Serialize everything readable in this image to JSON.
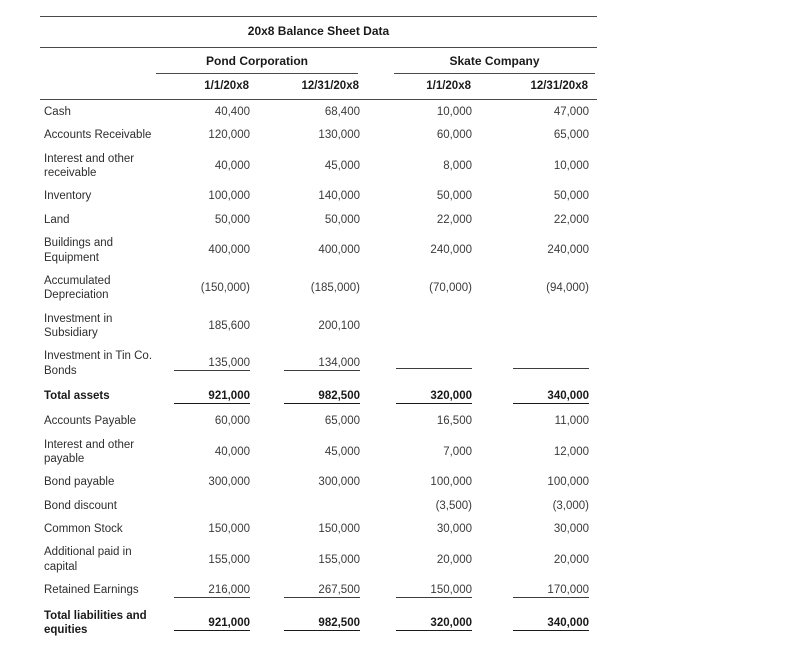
{
  "title": "20x8 Balance Sheet Data",
  "column_groups": [
    {
      "label": "Pond Corporation",
      "columns": [
        "1/1/20x8",
        "12/31/20x8"
      ]
    },
    {
      "label": "Skate Company",
      "columns": [
        "1/1/20x8",
        "12/31/20x8"
      ]
    }
  ],
  "rows": [
    {
      "label": "Cash",
      "style": "",
      "values": [
        "40,400",
        "68,400",
        "10,000",
        "47,000"
      ]
    },
    {
      "label": "Accounts Receivable",
      "style": "",
      "values": [
        "120,000",
        "130,000",
        "60,000",
        "65,000"
      ]
    },
    {
      "label": "Interest and other receivable",
      "style": "",
      "values": [
        "40,000",
        "45,000",
        "8,000",
        "10,000"
      ]
    },
    {
      "label": "Inventory",
      "style": "",
      "values": [
        "100,000",
        "140,000",
        "50,000",
        "50,000"
      ]
    },
    {
      "label": "Land",
      "style": "",
      "values": [
        "50,000",
        "50,000",
        "22,000",
        "22,000"
      ]
    },
    {
      "label": "Buildings and Equipment",
      "style": "",
      "values": [
        "400,000",
        "400,000",
        "240,000",
        "240,000"
      ]
    },
    {
      "label": "Accumulated Depreciation",
      "style": "",
      "values": [
        "(150,000)",
        "(185,000)",
        "(70,000)",
        "(94,000)"
      ]
    },
    {
      "label": "Investment in Subsidiary",
      "style": "",
      "values": [
        "185,600",
        "200,100",
        "",
        ""
      ]
    },
    {
      "label": "Investment in Tin Co. Bonds",
      "style": "sumline",
      "values": [
        "135,000",
        "134,000",
        "",
        ""
      ]
    },
    {
      "label": "Total assets",
      "style": "total",
      "values": [
        "921,000",
        "982,500",
        "320,000",
        "340,000"
      ]
    },
    {
      "label": "Accounts Payable",
      "style": "",
      "values": [
        "60,000",
        "65,000",
        "16,500",
        "11,000"
      ]
    },
    {
      "label": "Interest and other payable",
      "style": "",
      "values": [
        "40,000",
        "45,000",
        "7,000",
        "12,000"
      ]
    },
    {
      "label": "Bond payable",
      "style": "",
      "values": [
        "300,000",
        "300,000",
        "100,000",
        "100,000"
      ]
    },
    {
      "label": "Bond discount",
      "style": "",
      "values": [
        "",
        "",
        "(3,500)",
        "(3,000)"
      ]
    },
    {
      "label": "Common Stock",
      "style": "",
      "values": [
        "150,000",
        "150,000",
        "30,000",
        "30,000"
      ]
    },
    {
      "label": "Additional paid in capital",
      "style": "",
      "values": [
        "155,000",
        "155,000",
        "20,000",
        "20,000"
      ]
    },
    {
      "label": "Retained Earnings",
      "style": "sumline",
      "values": [
        "216,000",
        "267,500",
        "150,000",
        "170,000"
      ]
    },
    {
      "label": "Total liabilities and equities",
      "style": "total",
      "values": [
        "921,000",
        "982,500",
        "320,000",
        "340,000"
      ]
    }
  ]
}
